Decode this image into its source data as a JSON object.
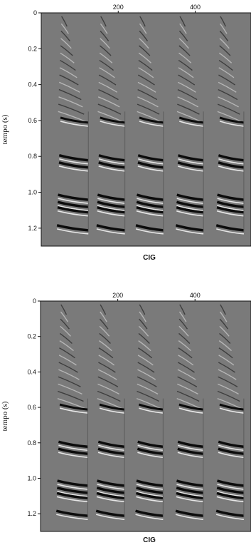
{
  "colors": {
    "background": "#ffffff",
    "plot_fill": "#7a7a7a",
    "event_dark": "#0c0c0c",
    "event_light": "#e6e6e6",
    "axis": "#111111"
  },
  "panels": [
    {
      "x_ticks": [
        {
          "value": 200,
          "label": "200"
        },
        {
          "value": 400,
          "label": "400"
        }
      ],
      "y_ticks": [
        {
          "value": 0,
          "label": "0"
        },
        {
          "value": 0.2,
          "label": "0.2"
        },
        {
          "value": 0.4,
          "label": "0.4"
        },
        {
          "value": 0.6,
          "label": "0.6"
        },
        {
          "value": 0.8,
          "label": "0.8"
        },
        {
          "value": 1.0,
          "label": "1.0"
        },
        {
          "value": 1.2,
          "label": "1.2"
        }
      ],
      "y_axis_label": "tempo (s)",
      "x_axis_label": "CIG",
      "x_range": [
        0,
        545
      ],
      "y_range": [
        0,
        1.3
      ],
      "gathers": [
        {
          "x_start": 55,
          "x_end": 115
        },
        {
          "x_start": 158,
          "x_end": 210
        },
        {
          "x_start": 260,
          "x_end": 310
        },
        {
          "x_start": 364,
          "x_end": 414
        },
        {
          "x_start": 469,
          "x_end": 519
        }
      ],
      "event_times": [
        0.6,
        0.81,
        0.85,
        1.03,
        1.07,
        1.1,
        1.2
      ]
    },
    {
      "x_ticks": [
        {
          "value": 200,
          "label": "200"
        },
        {
          "value": 400,
          "label": "400"
        }
      ],
      "y_ticks": [
        {
          "value": 0,
          "label": "0"
        },
        {
          "value": 0.2,
          "label": "0.2"
        },
        {
          "value": 0.4,
          "label": "0.4"
        },
        {
          "value": 0.6,
          "label": "0.6"
        },
        {
          "value": 0.8,
          "label": "0.8"
        },
        {
          "value": 1.0,
          "label": "1.0"
        },
        {
          "value": 1.2,
          "label": "1.2"
        }
      ],
      "y_axis_label": "tempo (s)",
      "x_axis_label": "CIG",
      "x_range": [
        0,
        545
      ],
      "y_range": [
        0,
        1.3
      ],
      "gathers": [
        {
          "x_start": 55,
          "x_end": 115
        },
        {
          "x_start": 158,
          "x_end": 210
        },
        {
          "x_start": 260,
          "x_end": 310
        },
        {
          "x_start": 364,
          "x_end": 414
        },
        {
          "x_start": 469,
          "x_end": 519
        }
      ],
      "event_times": [
        0.6,
        0.81,
        0.85,
        1.03,
        1.07,
        1.1,
        1.2
      ]
    }
  ]
}
